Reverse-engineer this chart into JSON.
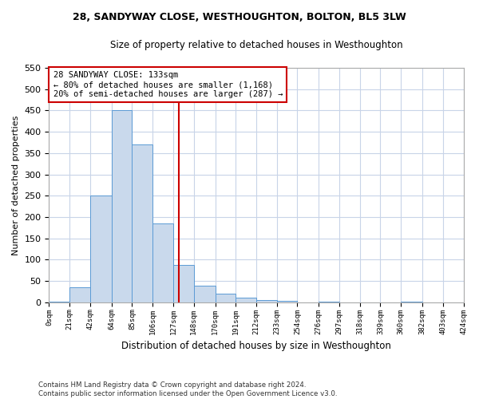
{
  "title": "28, SANDYWAY CLOSE, WESTHOUGHTON, BOLTON, BL5 3LW",
  "subtitle": "Size of property relative to detached houses in Westhoughton",
  "xlabel": "Distribution of detached houses by size in Westhoughton",
  "ylabel": "Number of detached properties",
  "bin_edges": [
    0,
    21,
    42,
    64,
    85,
    106,
    127,
    148,
    170,
    191,
    212,
    233,
    254,
    276,
    297,
    318,
    339,
    360,
    382,
    403,
    424
  ],
  "bar_heights": [
    2,
    35,
    250,
    450,
    370,
    185,
    87,
    38,
    20,
    11,
    5,
    3,
    0,
    2,
    0,
    0,
    0,
    1,
    0,
    0
  ],
  "bar_color": "#c9d9ec",
  "bar_edge_color": "#5b9bd5",
  "property_size": 133,
  "annotation_title": "28 SANDYWAY CLOSE: 133sqm",
  "annotation_line1": "← 80% of detached houses are smaller (1,168)",
  "annotation_line2": "20% of semi-detached houses are larger (287) →",
  "annotation_box_color": "#ffffff",
  "annotation_box_edge": "#cc0000",
  "vline_color": "#cc0000",
  "ylim_max": 550,
  "yticks": [
    0,
    50,
    100,
    150,
    200,
    250,
    300,
    350,
    400,
    450,
    500,
    550
  ],
  "tick_labels": [
    "0sqm",
    "21sqm",
    "42sqm",
    "64sqm",
    "85sqm",
    "106sqm",
    "127sqm",
    "148sqm",
    "170sqm",
    "191sqm",
    "212sqm",
    "233sqm",
    "254sqm",
    "276sqm",
    "297sqm",
    "318sqm",
    "339sqm",
    "360sqm",
    "382sqm",
    "403sqm",
    "424sqm"
  ],
  "footer_line1": "Contains HM Land Registry data © Crown copyright and database right 2024.",
  "footer_line2": "Contains public sector information licensed under the Open Government Licence v3.0.",
  "background_color": "#ffffff",
  "grid_color": "#c8d4e8"
}
